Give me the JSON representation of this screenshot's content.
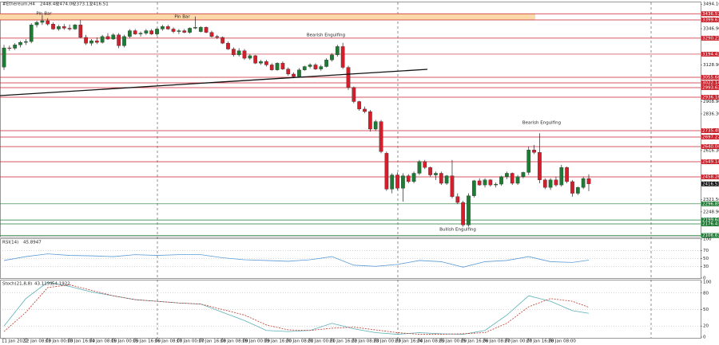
{
  "chart_data": [
    {
      "type": "candlestick",
      "title": "#Ethereum,H4",
      "up_color": "#1e7b34",
      "down_color": "#d21f2b",
      "zone_color": "#fbd9a8",
      "ylim": [
        2100,
        3500
      ],
      "yticks": [
        {
          "value": 3494.1,
          "label": "3494.10"
        },
        {
          "value": 3346.9,
          "label": "3346.90"
        },
        {
          "value": 3128.9,
          "label": "3128.90"
        },
        {
          "value": 2908.9,
          "label": "2908.90"
        },
        {
          "value": 2836.3,
          "label": "2836.30"
        },
        {
          "value": 2616.3,
          "label": "2616.30"
        },
        {
          "value": 2321.5,
          "label": "2321.50"
        },
        {
          "value": 2248.9,
          "label": "2248.90"
        }
      ],
      "resistance_levels": [
        3436.57,
        3399.63,
        3290.21,
        3194.43,
        3055.68,
        3022.14,
        2993.63,
        2936.18,
        2735.49,
        2697.27,
        2640.04,
        2549.14,
        2458.26
      ],
      "support_levels": [
        2296.85,
        2199.64,
        2176.43,
        2106.67
      ],
      "annotations": [
        "Pin Bar",
        "Pin Bar",
        "Bearish Engulfing",
        "Bearish Engulfing",
        "Bullish Engulfing"
      ],
      "categories": [
        "11 Jan 2022",
        null,
        null,
        null,
        "12 Jan 08:00",
        null,
        null,
        null,
        "13 Jan 00:00",
        null,
        null,
        null,
        "13 Jan 16:00",
        null,
        null,
        null,
        "14 Jan 08:00",
        null,
        null,
        null,
        "15 Jan 00:00",
        null,
        null,
        null,
        "15 Jan 16:00",
        null,
        null,
        null,
        "16 Jan 08:00",
        null,
        null,
        null,
        "17 Jan 00:00",
        null,
        null,
        null,
        "17 Jan 16:00",
        null,
        null,
        null,
        "18 Jan 08:00",
        null,
        null,
        null,
        "19 Jan 00:00",
        null,
        null,
        null,
        "19 Jan 16:00",
        null,
        null,
        null,
        "20 Jan 08:00",
        null,
        null,
        null,
        "21 Jan 00:00",
        null,
        null,
        null,
        "21 Jan 16:00",
        null,
        null,
        null,
        "22 Jan 08:00",
        null,
        null,
        null,
        "23 Jan 00:00",
        null,
        null,
        null,
        "23 Jan 16:00",
        null,
        null,
        null,
        "24 Jan 08:00",
        null,
        null,
        null,
        "25 Jan 00:00",
        null,
        null,
        null,
        "25 Jan 16:00",
        null,
        null,
        null,
        "26 Jan 08:00",
        null,
        null,
        null,
        "27 Jan 00:00",
        null,
        null,
        null,
        "27 Jan 16:00",
        null,
        null,
        null,
        "28 Jan 08:00",
        null,
        null,
        null,
        null,
        null,
        null,
        null
      ],
      "ohlc": [
        [
          3117,
          3250,
          3100,
          3232
        ],
        [
          3232,
          3245,
          3215,
          3230
        ],
        [
          3230,
          3260,
          3220,
          3250
        ],
        [
          3250,
          3275,
          3235,
          3265
        ],
        [
          3265,
          3285,
          3250,
          3270
        ],
        [
          3270,
          3380,
          3260,
          3370
        ],
        [
          3370,
          3395,
          3355,
          3385
        ],
        [
          3385,
          3430,
          3370,
          3395
        ],
        [
          3395,
          3410,
          3365,
          3375
        ],
        [
          3375,
          3385,
          3340,
          3345
        ],
        [
          3345,
          3370,
          3335,
          3360
        ],
        [
          3360,
          3375,
          3340,
          3350
        ],
        [
          3350,
          3372,
          3335,
          3345
        ],
        [
          3345,
          3375,
          3340,
          3370
        ],
        [
          3370,
          3400,
          3290,
          3295
        ],
        [
          3295,
          3310,
          3250,
          3260
        ],
        [
          3260,
          3285,
          3245,
          3275
        ],
        [
          3275,
          3295,
          3255,
          3265
        ],
        [
          3265,
          3310,
          3258,
          3300
        ],
        [
          3300,
          3320,
          3280,
          3285
        ],
        [
          3285,
          3320,
          3280,
          3310
        ],
        [
          3310,
          3320,
          3230,
          3245
        ],
        [
          3245,
          3310,
          3235,
          3300
        ],
        [
          3300,
          3345,
          3290,
          3335
        ],
        [
          3335,
          3345,
          3310,
          3315
        ],
        [
          3315,
          3330,
          3300,
          3320
        ],
        [
          3320,
          3345,
          3310,
          3335
        ],
        [
          3335,
          3345,
          3310,
          3315
        ],
        [
          3315,
          3350,
          3305,
          3345
        ],
        [
          3345,
          3370,
          3335,
          3360
        ],
        [
          3360,
          3370,
          3340,
          3345
        ],
        [
          3345,
          3355,
          3320,
          3330
        ],
        [
          3330,
          3345,
          3315,
          3335
        ],
        [
          3335,
          3345,
          3320,
          3325
        ],
        [
          3325,
          3355,
          3318,
          3350
        ],
        [
          3350,
          3420,
          3345,
          3355
        ],
        [
          3330,
          3362,
          3325,
          3355
        ],
        [
          3355,
          3360,
          3320,
          3325
        ],
        [
          3325,
          3335,
          3295,
          3300
        ],
        [
          3300,
          3310,
          3285,
          3295
        ],
        [
          3295,
          3300,
          3255,
          3260
        ],
        [
          3260,
          3270,
          3220,
          3225
        ],
        [
          3225,
          3235,
          3180,
          3190
        ],
        [
          3190,
          3230,
          3180,
          3215
        ],
        [
          3215,
          3225,
          3160,
          3170
        ],
        [
          3170,
          3195,
          3160,
          3185
        ],
        [
          3185,
          3190,
          3135,
          3140
        ],
        [
          3140,
          3160,
          3130,
          3150
        ],
        [
          3150,
          3160,
          3120,
          3130
        ],
        [
          3130,
          3140,
          3095,
          3100
        ],
        [
          3100,
          3145,
          3095,
          3140
        ],
        [
          3140,
          3150,
          3100,
          3105
        ],
        [
          3105,
          3115,
          3065,
          3075
        ],
        [
          3075,
          3085,
          3050,
          3060
        ],
        [
          3060,
          3110,
          3055,
          3100
        ],
        [
          3100,
          3125,
          3095,
          3120
        ],
        [
          3120,
          3140,
          3110,
          3130
        ],
        [
          3130,
          3140,
          3100,
          3105
        ],
        [
          3105,
          3130,
          3095,
          3120
        ],
        [
          3120,
          3170,
          3115,
          3160
        ],
        [
          3160,
          3200,
          3150,
          3190
        ],
        [
          3190,
          3250,
          3180,
          3240
        ],
        [
          3240,
          3262,
          3105,
          3115
        ],
        [
          3115,
          3125,
          2980,
          2995
        ],
        [
          2995,
          3000,
          2900,
          2910
        ],
        [
          2910,
          2915,
          2855,
          2865
        ],
        [
          2865,
          2880,
          2840,
          2850
        ],
        [
          2850,
          2860,
          2730,
          2745
        ],
        [
          2745,
          2800,
          2735,
          2790
        ],
        [
          2790,
          2800,
          2600,
          2610
        ],
        [
          2600,
          2610,
          2375,
          2385
        ],
        [
          2385,
          2480,
          2360,
          2470
        ],
        [
          2470,
          2485,
          2380,
          2390
        ],
        [
          2390,
          2480,
          2310,
          2465
        ],
        [
          2465,
          2475,
          2420,
          2430
        ],
        [
          2430,
          2490,
          2420,
          2480
        ],
        [
          2480,
          2560,
          2470,
          2550
        ],
        [
          2550,
          2560,
          2505,
          2515
        ],
        [
          2515,
          2520,
          2460,
          2470
        ],
        [
          2470,
          2490,
          2440,
          2480
        ],
        [
          2480,
          2490,
          2410,
          2420
        ],
        [
          2420,
          2470,
          2410,
          2465
        ],
        [
          2465,
          2560,
          2330,
          2340
        ],
        [
          2340,
          2360,
          2295,
          2305
        ],
        [
          2305,
          2315,
          2160,
          2170
        ],
        [
          2170,
          2360,
          2160,
          2345
        ],
        [
          2345,
          2440,
          2335,
          2435
        ],
        [
          2435,
          2450,
          2405,
          2410
        ],
        [
          2410,
          2450,
          2395,
          2440
        ],
        [
          2440,
          2445,
          2400,
          2410
        ],
        [
          2410,
          2425,
          2395,
          2415
        ],
        [
          2415,
          2465,
          2405,
          2460
        ],
        [
          2460,
          2490,
          2445,
          2480
        ],
        [
          2480,
          2485,
          2410,
          2420
        ],
        [
          2420,
          2470,
          2410,
          2460
        ],
        [
          2460,
          2490,
          2450,
          2485
        ],
        [
          2485,
          2640,
          2470,
          2620
        ],
        [
          2620,
          2650,
          2595,
          2605
        ],
        [
          2605,
          2720,
          2420,
          2440
        ],
        [
          2440,
          2450,
          2385,
          2395
        ],
        [
          2395,
          2450,
          2380,
          2440
        ],
        [
          2440,
          2460,
          2400,
          2410
        ],
        [
          2410,
          2530,
          2400,
          2515
        ],
        [
          2515,
          2520,
          2420,
          2430
        ],
        [
          2430,
          2440,
          2340,
          2360
        ],
        [
          2360,
          2400,
          2350,
          2395
        ],
        [
          2395,
          2460,
          2385,
          2448.48
        ],
        [
          2448.48,
          2474.06,
          2373.13,
          2416.51
        ]
      ]
    },
    {
      "type": "line",
      "title": "RSI(14)",
      "ylim": [
        0,
        100
      ],
      "yticks": [
        100,
        70,
        50,
        30,
        0
      ],
      "x": [
        0,
        4,
        8,
        12,
        16,
        20,
        24,
        28,
        32,
        36,
        40,
        44,
        48,
        52,
        56,
        60,
        64,
        68,
        72,
        76,
        80,
        84,
        88,
        92,
        96,
        100,
        104,
        107
      ],
      "series": [
        {
          "name": "RSI",
          "color": "#5b9bd5",
          "values": [
            45,
            55,
            62,
            58,
            57,
            55,
            60,
            58,
            60,
            60,
            52,
            47,
            45,
            43,
            47,
            55,
            33,
            30,
            35,
            45,
            42,
            28,
            42,
            45,
            55,
            42,
            40,
            45.8947
          ]
        }
      ]
    },
    {
      "type": "line",
      "title": "Stoch(21,8,8)",
      "ylim": [
        0,
        100
      ],
      "yticks": [
        100,
        80,
        50,
        20,
        0
      ],
      "x": [
        0,
        4,
        8,
        12,
        16,
        20,
        24,
        28,
        32,
        36,
        40,
        44,
        48,
        52,
        56,
        60,
        64,
        68,
        72,
        76,
        80,
        84,
        88,
        92,
        96,
        100,
        104,
        107
      ],
      "series": [
        {
          "name": "Main",
          "color": "#5ab0b8",
          "values": [
            20,
            70,
            100,
            92,
            82,
            75,
            68,
            65,
            62,
            60,
            45,
            30,
            12,
            10,
            12,
            25,
            15,
            8,
            5,
            8,
            6,
            5,
            12,
            40,
            75,
            65,
            48,
            43.1199
          ]
        },
        {
          "name": "Signal",
          "color": "#c0392b",
          "dashed": true,
          "values": [
            10,
            45,
            90,
            95,
            85,
            75,
            68,
            65,
            62,
            60,
            50,
            40,
            22,
            13,
            12,
            16,
            18,
            13,
            8,
            5,
            5,
            6,
            8,
            25,
            55,
            70,
            65,
            54.1922
          ]
        }
      ]
    }
  ]
}
